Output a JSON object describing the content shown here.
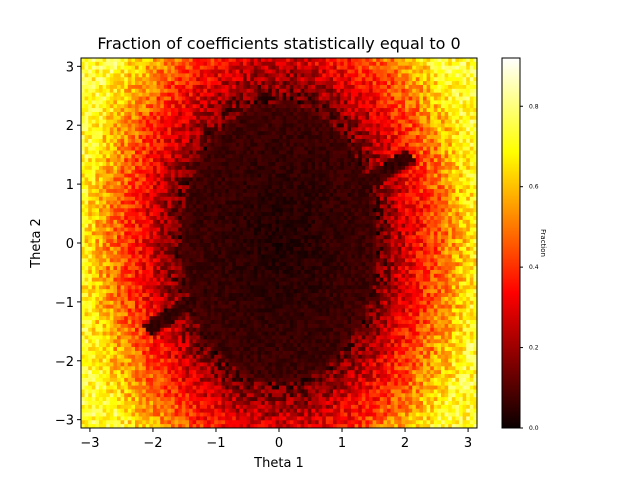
{
  "chart_data": {
    "type": "heatmap",
    "title": "Fraction of coefficients statistically equal to 0",
    "xlabel": "Theta 1",
    "ylabel": "Theta 2",
    "xlim": [
      -3.14159,
      3.14159
    ],
    "ylim": [
      -3.14159,
      3.14159
    ],
    "xticks": [
      -3,
      -2,
      -1,
      0,
      1,
      2,
      3
    ],
    "yticks": [
      -3,
      -2,
      -1,
      0,
      1,
      2,
      3
    ],
    "colormap": "hot",
    "colorbar": {
      "label": "Fraction",
      "range": [
        0,
        0.92
      ],
      "ticks": [
        "0.0",
        "0.2",
        "0.4",
        "0.6",
        "0.8"
      ]
    },
    "pattern": {
      "description_values": "Fraction is near 0 inside an elliptical region centered at the origin (semi-axes about 1.5 in Theta 1 and 2.3 in Theta 2), with thin low-value arms toward (2.1, 1.5) and (-2.1, -1.5); values rise to about 0.5-0.9 toward the left and right edges.",
      "center_low_value": 0.03,
      "edge_high_value": 0.72,
      "ellipse_semi_axes": [
        1.5,
        2.3
      ],
      "arm_tips": [
        [
          2.1,
          1.5
        ],
        [
          -2.1,
          -1.5
        ]
      ]
    }
  }
}
